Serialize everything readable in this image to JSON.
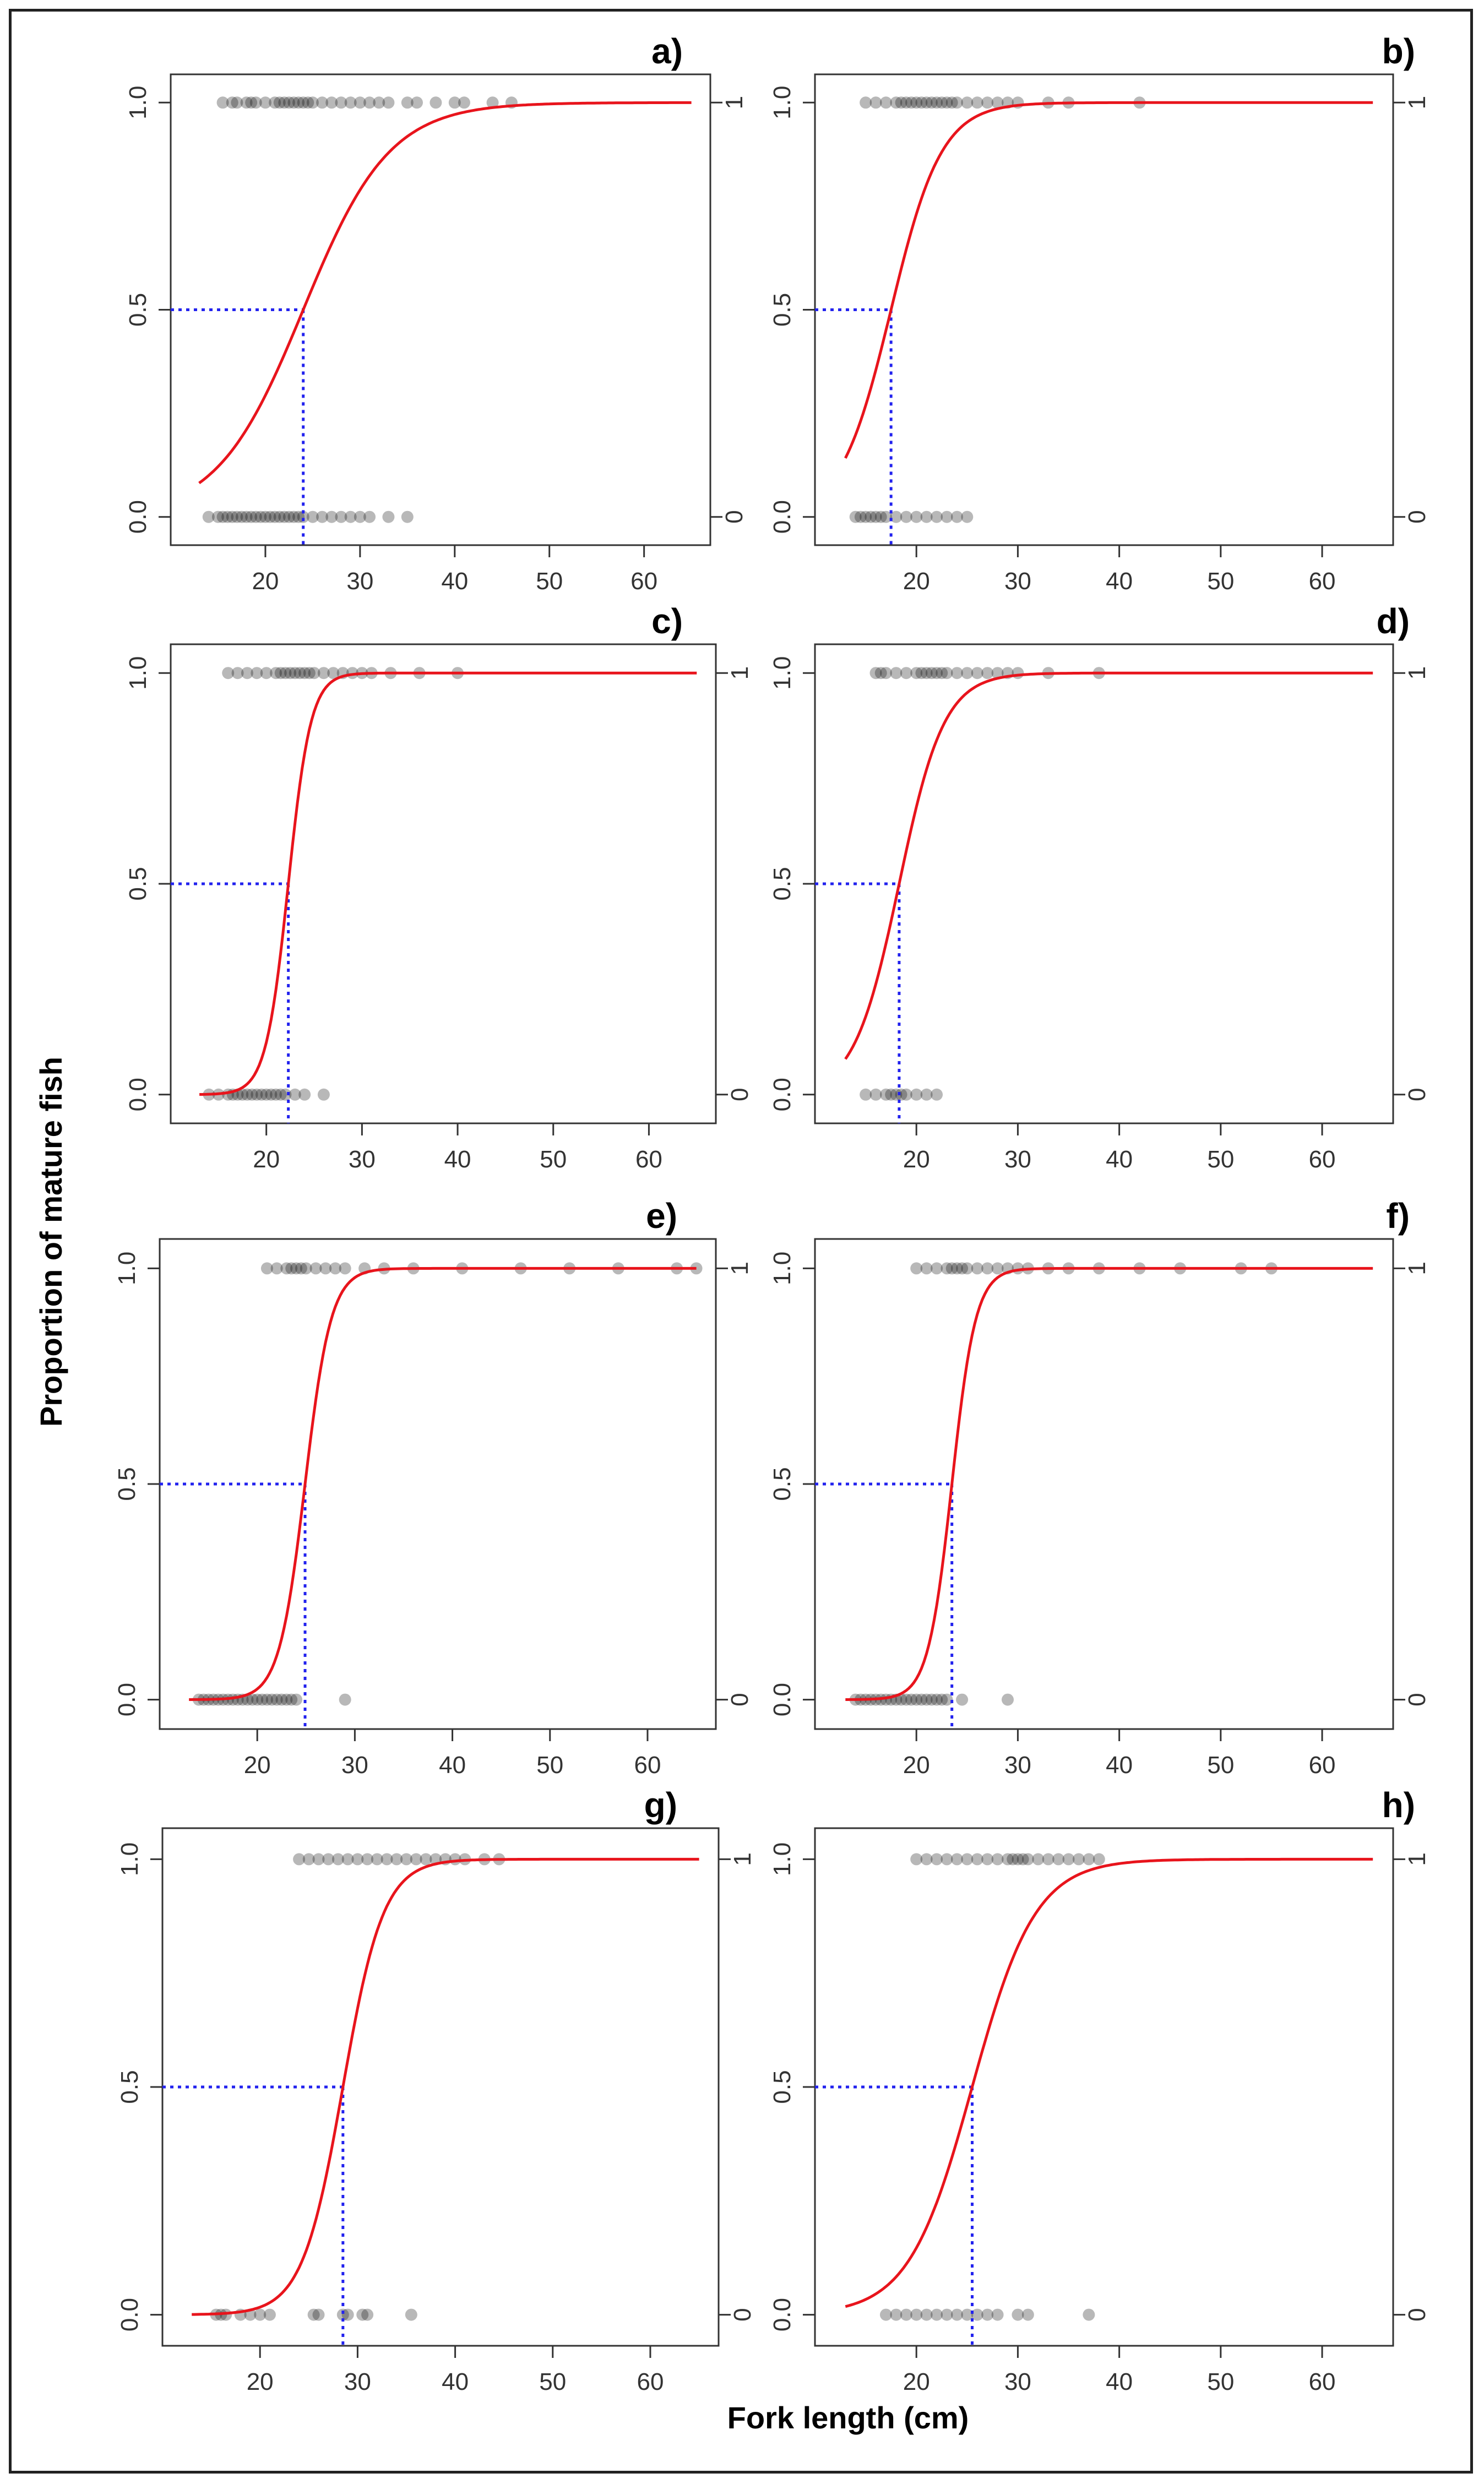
{
  "figure": {
    "ylabel": "Proportion of mature fish",
    "xlabel": "Fork length (cm)"
  },
  "chart_data": [
    {
      "type": "scatter",
      "label": "a)",
      "l50": 24.0,
      "slope": 0.22,
      "xlim": [
        10,
        67
      ],
      "ylim": [
        -0.03,
        1.03
      ],
      "xticks": [
        20,
        30,
        40,
        50,
        60
      ],
      "yticks_left": [
        "0.0",
        "0.5",
        "1.0"
      ],
      "yticks_right": [
        "0",
        "1"
      ],
      "curve_start": 13,
      "mature_x": [
        15.5,
        16.5,
        17,
        18,
        18.5,
        19,
        20,
        21,
        21.5,
        22,
        22.5,
        23,
        23.5,
        24,
        24.5,
        25,
        26,
        27,
        28,
        29,
        30,
        31,
        32,
        33,
        35,
        36,
        38,
        40,
        41,
        44,
        46
      ],
      "immature_x": [
        14,
        15,
        15.5,
        16,
        16.5,
        17,
        17.5,
        18,
        18.5,
        19,
        19.5,
        20,
        20.5,
        21,
        21.5,
        22,
        22.5,
        23,
        23.5,
        24,
        25,
        26,
        27,
        28,
        29,
        30,
        31,
        33,
        35
      ]
    },
    {
      "type": "scatter",
      "label": "b)",
      "l50": 17.5,
      "slope": 0.4,
      "xlim": [
        10,
        67
      ],
      "ylim": [
        -0.03,
        1.03
      ],
      "xticks": [
        20,
        30,
        40,
        50,
        60
      ],
      "yticks_left": [
        "0.0",
        "0.5",
        "1.0"
      ],
      "yticks_right": [
        "0",
        "1"
      ],
      "curve_start": 13,
      "mature_x": [
        15,
        16,
        17,
        18,
        18.5,
        19,
        19.5,
        20,
        20.5,
        21,
        21.5,
        22,
        22.5,
        23,
        23.5,
        24,
        25,
        26,
        27,
        28,
        29,
        30,
        33,
        35,
        42
      ],
      "immature_x": [
        14,
        14.5,
        15,
        15.5,
        16,
        16.5,
        17,
        18,
        19,
        20,
        21,
        22,
        23,
        24,
        25
      ]
    },
    {
      "type": "scatter",
      "label": "c)",
      "l50": 22.3,
      "slope": 0.85,
      "xlim": [
        10,
        67
      ],
      "ylim": [
        -0.03,
        1.03
      ],
      "xticks": [
        20,
        30,
        40,
        50,
        60
      ],
      "yticks_left": [
        "0.0",
        "0.5",
        "1.0"
      ],
      "yticks_right": [
        "0",
        "1"
      ],
      "curve_start": 13,
      "mature_x": [
        16,
        17,
        18,
        19,
        20,
        21,
        21.5,
        22,
        22.5,
        23,
        23.5,
        24,
        24.5,
        25,
        26,
        27,
        28,
        29,
        30,
        31,
        33,
        36,
        40
      ],
      "immature_x": [
        14,
        15,
        16,
        16.5,
        17,
        17.5,
        18,
        18.5,
        19,
        19.5,
        20,
        20.5,
        21,
        21.5,
        22,
        23,
        24,
        26
      ]
    },
    {
      "type": "scatter",
      "label": "d)",
      "l50": 18.3,
      "slope": 0.45,
      "xlim": [
        10,
        67
      ],
      "ylim": [
        -0.03,
        1.03
      ],
      "xticks": [
        20,
        30,
        40,
        50,
        60
      ],
      "yticks_left": [
        "0.0",
        "0.5",
        "1.0"
      ],
      "yticks_right": [
        "0",
        "1"
      ],
      "curve_start": 13,
      "mature_x": [
        16,
        16.5,
        17,
        18,
        19,
        20,
        20.5,
        21,
        21.5,
        22,
        22.5,
        23,
        24,
        25,
        26,
        27,
        28,
        29,
        30,
        33,
        38
      ],
      "immature_x": [
        15,
        16,
        17,
        17.5,
        18,
        18.5,
        19,
        20,
        21,
        22
      ]
    },
    {
      "type": "scatter",
      "label": "e)",
      "l50": 24.9,
      "slope": 0.75,
      "xlim": [
        10,
        67
      ],
      "ylim": [
        -0.03,
        1.03
      ],
      "xticks": [
        20,
        30,
        40,
        50,
        60
      ],
      "yticks_left": [
        "0.0",
        "0.5",
        "1.0"
      ],
      "yticks_right": [
        "0",
        "1"
      ],
      "curve_start": 13,
      "mature_x": [
        21,
        22,
        23,
        23.5,
        24,
        24.5,
        25,
        26,
        27,
        28,
        29,
        31,
        33,
        36,
        41,
        47,
        52,
        57,
        63,
        65
      ],
      "immature_x": [
        14,
        14.5,
        15,
        15.5,
        16,
        16.5,
        17,
        17.5,
        18,
        18.5,
        19,
        19.5,
        20,
        20.5,
        21,
        21.5,
        22,
        22.5,
        23,
        23.5,
        24,
        29
      ]
    },
    {
      "type": "scatter",
      "label": "f)",
      "l50": 23.5,
      "slope": 0.85,
      "xlim": [
        10,
        67
      ],
      "ylim": [
        -0.03,
        1.03
      ],
      "xticks": [
        20,
        30,
        40,
        50,
        60
      ],
      "yticks_left": [
        "0.0",
        "0.5",
        "1.0"
      ],
      "yticks_right": [
        "0",
        "1"
      ],
      "curve_start": 13,
      "mature_x": [
        20,
        21,
        22,
        23,
        23.5,
        24,
        24.5,
        25,
        26,
        27,
        28,
        29,
        30,
        31,
        33,
        35,
        38,
        42,
        46,
        52,
        55
      ],
      "immature_x": [
        14,
        14.5,
        15,
        15.5,
        16,
        16.5,
        17,
        17.5,
        18,
        18.5,
        19,
        19.5,
        20,
        20.5,
        21,
        21.5,
        22,
        22.5,
        23,
        24.5,
        29
      ]
    },
    {
      "type": "scatter",
      "label": "g)",
      "l50": 28.5,
      "slope": 0.48,
      "xlim": [
        10,
        67
      ],
      "ylim": [
        -0.03,
        1.03
      ],
      "xticks": [
        20,
        30,
        40,
        50,
        60
      ],
      "yticks_left": [
        "0.0",
        "0.5",
        "1.0"
      ],
      "yticks_right": [
        "0",
        "1"
      ],
      "curve_start": 13,
      "mature_x": [
        24,
        25,
        26,
        27,
        28,
        29,
        30,
        31,
        32,
        33,
        34,
        35,
        36,
        37,
        38,
        39,
        40,
        41,
        43,
        44.5
      ],
      "immature_x": [
        15.5,
        16,
        16.5,
        18,
        19,
        20,
        21,
        25.5,
        26,
        28.5,
        29,
        30.5,
        31,
        35.5
      ]
    },
    {
      "type": "scatter",
      "label": "h)",
      "l50": 25.5,
      "slope": 0.32,
      "xlim": [
        10,
        67
      ],
      "ylim": [
        -0.03,
        1.03
      ],
      "xticks": [
        20,
        30,
        40,
        50,
        60
      ],
      "yticks_left": [
        "0.0",
        "0.5",
        "1.0"
      ],
      "yticks_right": [
        "0",
        "1"
      ],
      "curve_start": 13,
      "mature_x": [
        20,
        21,
        22,
        23,
        24,
        25,
        26,
        27,
        28,
        29,
        29.5,
        30,
        30.5,
        31,
        32,
        33,
        34,
        35,
        36,
        37,
        38
      ],
      "immature_x": [
        17,
        18,
        19,
        20,
        21,
        22,
        23,
        24,
        25,
        26,
        27,
        28,
        30,
        31,
        37
      ]
    }
  ]
}
